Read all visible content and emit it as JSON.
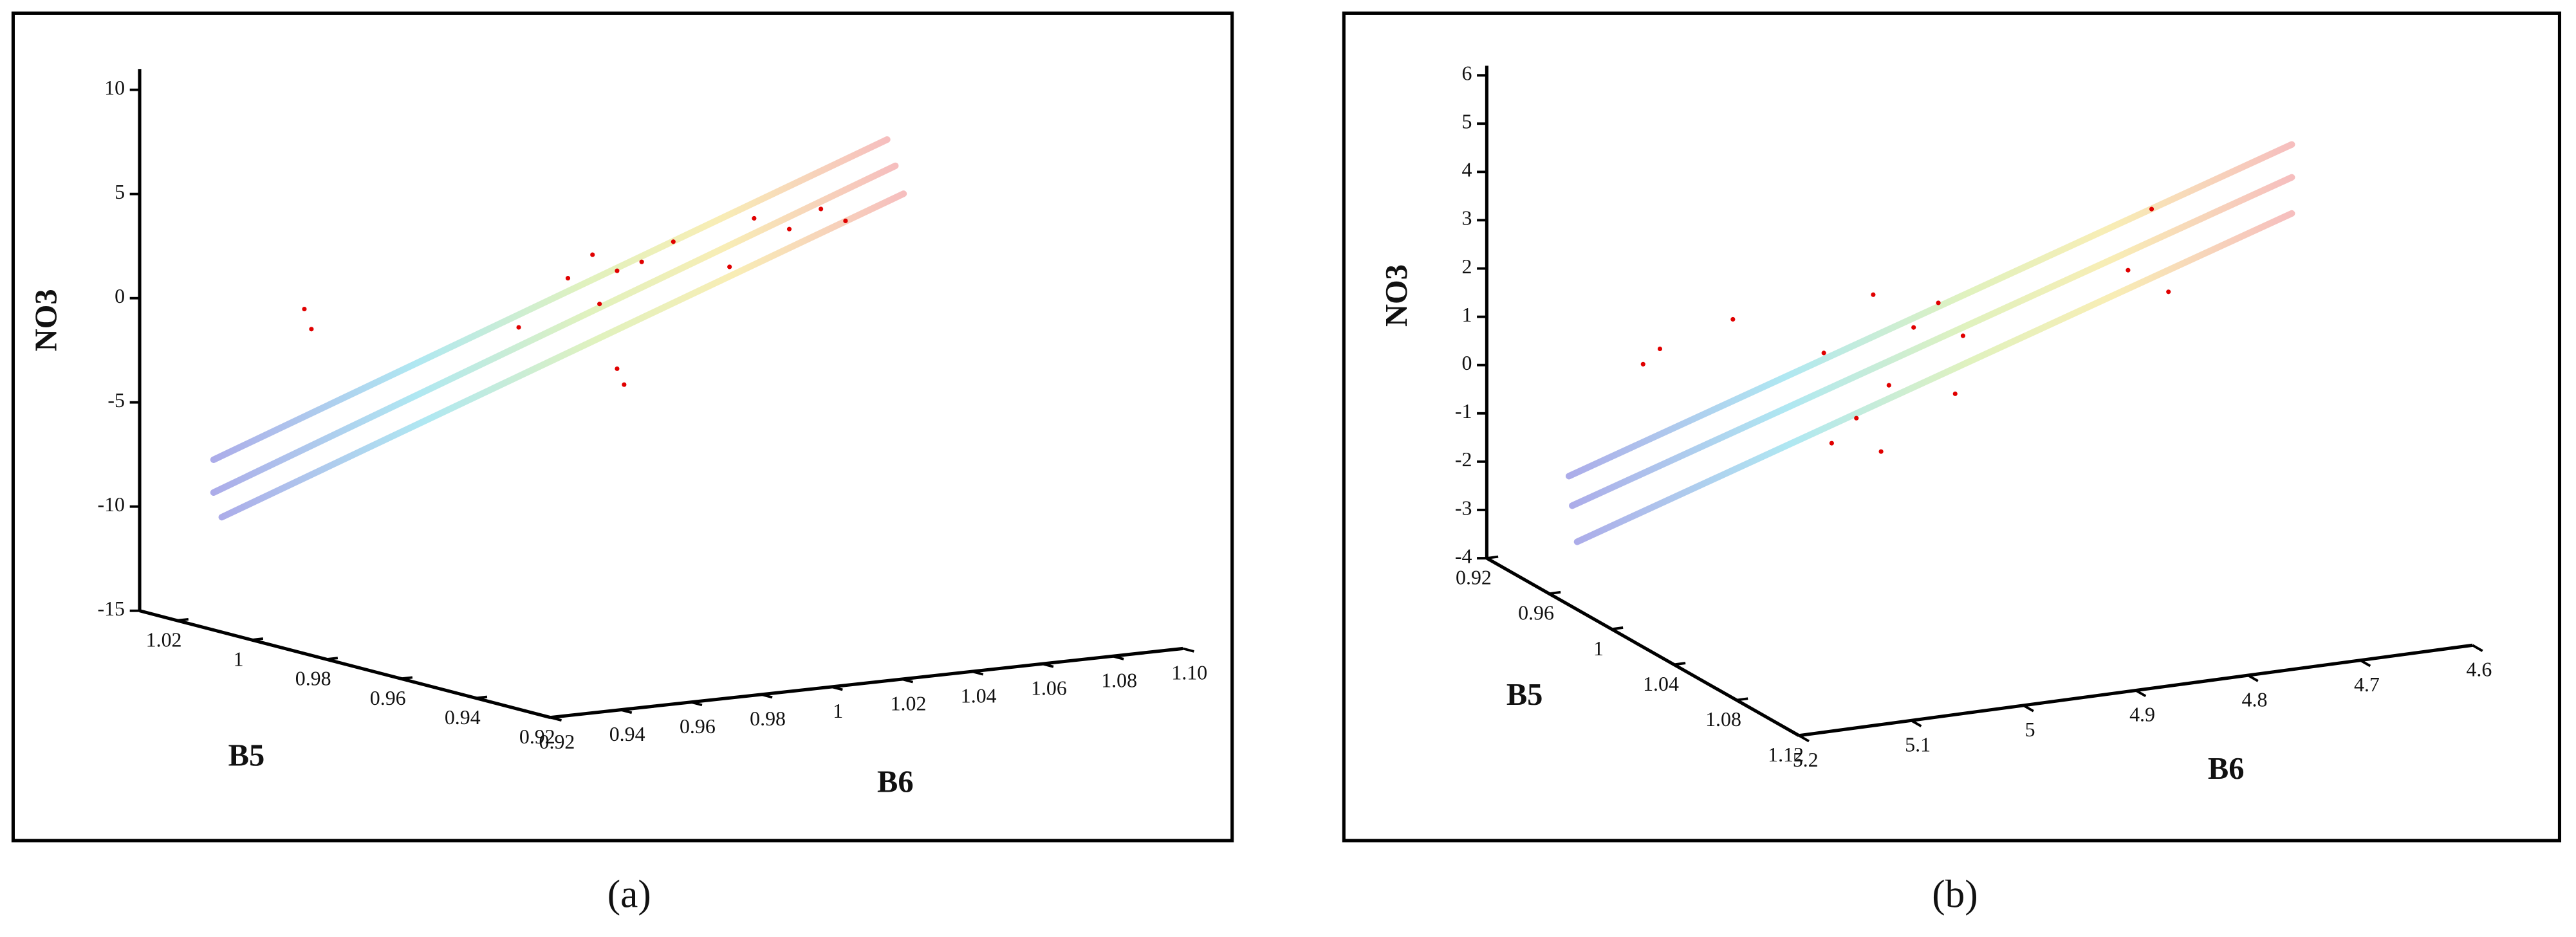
{
  "chart_data": [
    {
      "type": "scatter3d",
      "caption": "(a)",
      "xlabel": "B6",
      "ylabel": "B5",
      "zlabel": "NO3",
      "color": "#e00000",
      "xlim": [
        0.92,
        1.1
      ],
      "ylim": [
        0.92,
        1.03
      ],
      "zlim": [
        -15,
        11
      ],
      "xticks": [
        0.92,
        0.94,
        0.96,
        0.98,
        1,
        1.02,
        1.04,
        1.06,
        1.08,
        {
          "value": 1.1,
          "label": "1.10"
        }
      ],
      "yticks": [
        1.02,
        1,
        0.98,
        0.96,
        0.94,
        0.92
      ],
      "zticks": [
        10,
        5,
        0,
        -5,
        -10,
        -15
      ],
      "x": [
        0.935,
        0.937,
        0.996,
        1.01,
        1.017,
        1.024,
        1.024,
        1.026,
        1.031,
        1.04,
        1.056,
        1.063,
        1.073,
        1.082,
        1.089,
        1.019
      ],
      "y": [
        1.0,
        1.0,
        1.0,
        1.0,
        1.0,
        1.0,
        1.0,
        1.0,
        1.0,
        1.0,
        1.0,
        1.0,
        1.0,
        1.0,
        1.0,
        1.0
      ],
      "z": [
        0.6,
        -0.4,
        -1.4,
        0.7,
        1.7,
        0.8,
        -3.9,
        -4.7,
        1.1,
        1.9,
        0.4,
        2.6,
        1.9,
        2.7,
        2.0,
        -0.7
      ]
    },
    {
      "type": "scatter3d",
      "caption": "(b)",
      "xlabel": "B6",
      "ylabel": "B5",
      "zlabel": "NO3",
      "color": "#e00000",
      "xlim": [
        5.2,
        4.6
      ],
      "ylim": [
        1.12,
        0.92
      ],
      "zlim": [
        -4,
        6.2
      ],
      "xticks": [
        5.2,
        5.1,
        5,
        4.9,
        4.8,
        4.7,
        4.6
      ],
      "yticks": [
        0.92,
        0.96,
        1,
        1.04,
        1.08,
        1.12
      ],
      "zticks": [
        6,
        5,
        4,
        3,
        2,
        1,
        0,
        -1,
        -2,
        -3,
        -4
      ],
      "x": [
        5.172,
        5.157,
        5.092,
        5.011,
        4.982,
        4.967,
        4.96,
        4.953,
        4.931,
        4.894,
        4.909,
        4.887,
        4.74,
        4.719,
        4.704,
        5.004
      ],
      "y": [
        1.0,
        1.0,
        1.0,
        1.0,
        1.0,
        1.0,
        1.0,
        1.0,
        1.0,
        1.0,
        1.0,
        1.0,
        1.0,
        1.0,
        1.0,
        1.0
      ],
      "z": [
        1.4,
        1.67,
        2.08,
        1.13,
        -0.31,
        2.2,
        -1.07,
        0.28,
        1.41,
        -0.08,
        1.85,
        1.1,
        2.0,
        3.2,
        1.44,
        -0.76
      ]
    }
  ]
}
